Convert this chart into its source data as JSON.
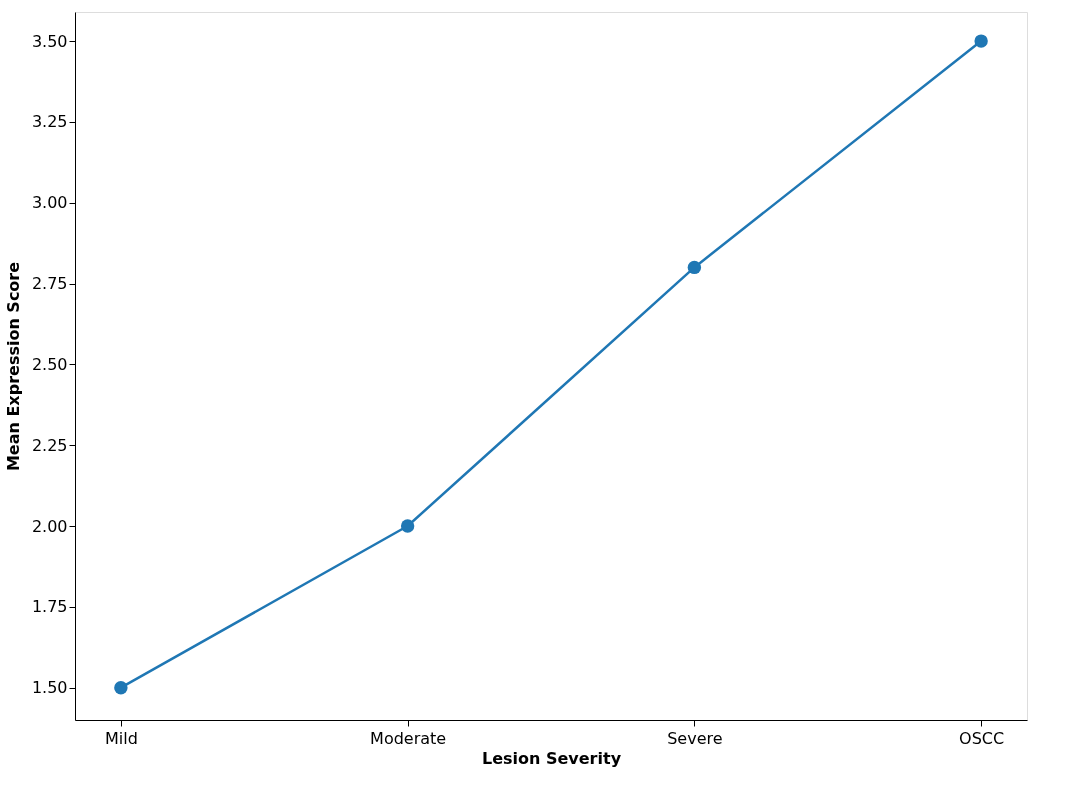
{
  "chart_data": {
    "type": "line",
    "xlabel": "Lesion Severity",
    "ylabel": "Mean Expression Score",
    "categories": [
      "Mild",
      "Moderate",
      "Severe",
      "OSCC"
    ],
    "series": [
      {
        "color": "#1f77b4",
        "values": [
          1.5,
          2.0,
          2.8,
          3.5
        ]
      }
    ],
    "ylim": [
      1.4,
      3.59
    ],
    "yticks": [
      {
        "value": 1.5,
        "label": "1.50"
      },
      {
        "value": 1.75,
        "label": "1.75"
      },
      {
        "value": 2.0,
        "label": "2.00"
      },
      {
        "value": 2.25,
        "label": "2.25"
      },
      {
        "value": 2.5,
        "label": "2.50"
      },
      {
        "value": 2.75,
        "label": "2.75"
      },
      {
        "value": 3.0,
        "label": "3.00"
      },
      {
        "value": 3.25,
        "label": "3.25"
      },
      {
        "value": 3.5,
        "label": "3.50"
      }
    ],
    "marker": "circle",
    "line_style": "solid",
    "grid": false
  }
}
